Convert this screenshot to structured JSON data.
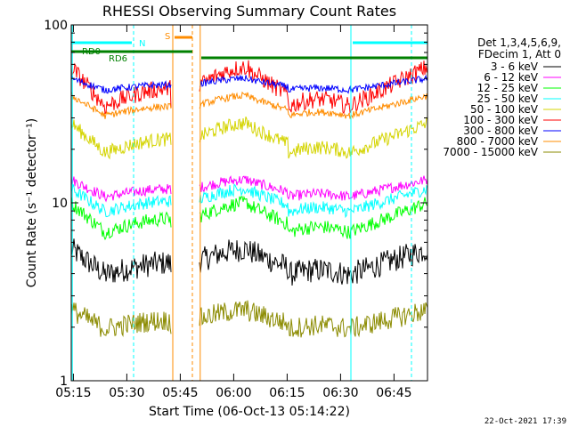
{
  "chart_data": {
    "type": "line",
    "title": "RHESSI Observing Summary Count Rates",
    "xlabel": "Start Time (06-Oct-13 05:14:22)",
    "ylabel": "Count Rate (s⁻¹ detector⁻¹)",
    "yscale": "log",
    "ylim": [
      1,
      100
    ],
    "xlim_minutes": [
      0,
      100
    ],
    "x_ticks": [
      "05:15",
      "05:30",
      "05:45",
      "06:00",
      "06:15",
      "06:30",
      "06:45"
    ],
    "y_ticks": [
      "1",
      "10",
      "100"
    ],
    "legend": {
      "header_lines": [
        "Det 1,3,4,5,6,9,",
        "FDecim 1, Att 0"
      ],
      "placement": "right"
    },
    "series": [
      {
        "name": "3 - 6 keV",
        "color": "#000000",
        "level_fg": 5.5,
        "level_bg": 3.0,
        "noise": 0.07
      },
      {
        "name": "6 - 12 keV",
        "color": "#ff00ff",
        "level_fg": 13.5,
        "level_bg": 9.0,
        "noise": 0.03
      },
      {
        "name": "12 - 25 keV",
        "color": "#00ff00",
        "level_fg": 10.0,
        "level_bg": 5.0,
        "noise": 0.04
      },
      {
        "name": "25 - 50 keV",
        "color": "#00ffff",
        "level_fg": 12.0,
        "level_bg": 7.0,
        "noise": 0.035
      },
      {
        "name": "50 - 100 keV",
        "color": "#d4d400",
        "level_fg": 28.0,
        "level_bg": 14.0,
        "noise": 0.04
      },
      {
        "name": "100 - 300 keV",
        "color": "#ff0000",
        "level_fg": 58.0,
        "level_bg": 23.0,
        "noise": 0.05
      },
      {
        "name": "300 - 800 keV",
        "color": "#0000ff",
        "level_fg": 50.0,
        "level_bg": 38.0,
        "noise": 0.02
      },
      {
        "name": "800 - 7000 keV",
        "color": "#ff8c00",
        "level_fg": 40.0,
        "level_bg": 25.0,
        "noise": 0.02
      },
      {
        "name": "7000 - 15000 keV",
        "color": "#8b8b00",
        "level_fg": 2.5,
        "level_bg": 1.6,
        "noise": 0.06
      }
    ],
    "annotations": [
      {
        "label": "N",
        "color": "#00ffff"
      },
      {
        "label": "S",
        "color": "#ff8c00"
      },
      {
        "label": "RD0",
        "color": "#008000"
      },
      {
        "label": "RD6",
        "color": "#008000"
      }
    ],
    "timestamp": "22-Oct-2021 17:39"
  }
}
